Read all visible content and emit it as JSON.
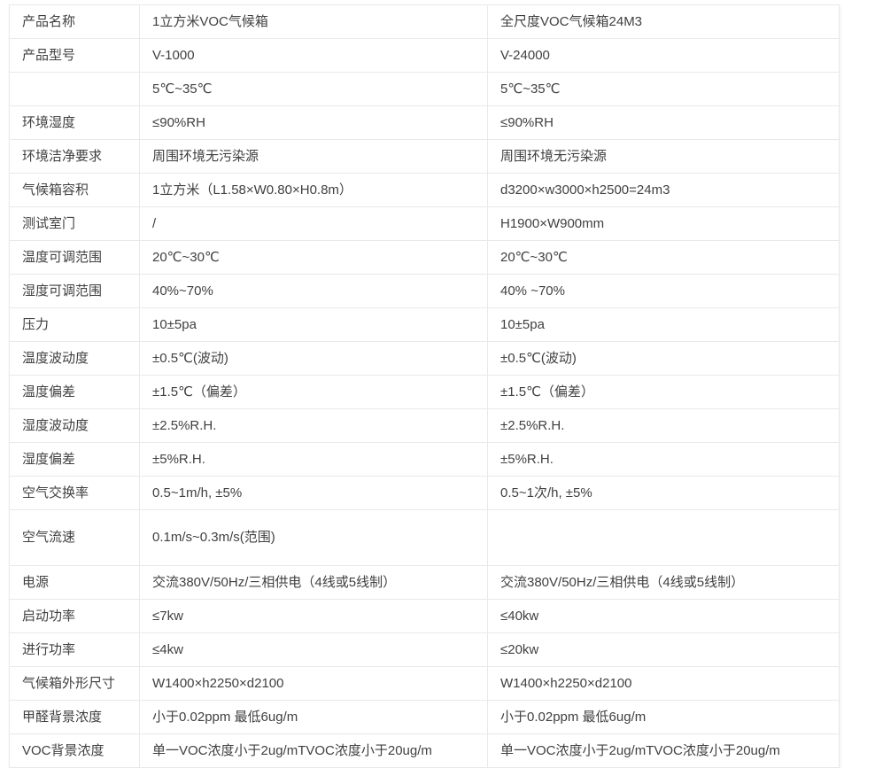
{
  "table": {
    "description": "VOC climate chamber product specification comparison table",
    "columns": [
      "spec-label",
      "product-v1000",
      "product-v24000"
    ],
    "rows": [
      {
        "cells": [
          "产品名称",
          "1立方米VOC气候箱",
          "全尺度VOC气候箱24M3"
        ]
      },
      {
        "cells": [
          "产品型号",
          "V-1000",
          "V-24000"
        ]
      },
      {
        "cells": [
          "",
          "5℃~35℃",
          "5℃~35℃"
        ]
      },
      {
        "cells": [
          "环境湿度",
          "≤90%RH",
          "≤90%RH"
        ]
      },
      {
        "cells": [
          "环境洁净要求",
          "周围环境无污染源",
          "周围环境无污染源"
        ]
      },
      {
        "cells": [
          "气候箱容积",
          "1立方米（L1.58×W0.80×H0.8m）",
          "d3200×w3000×h2500=24m3"
        ]
      },
      {
        "cells": [
          "测试室门",
          "/",
          "H1900×W900mm"
        ]
      },
      {
        "cells": [
          "温度可调范围",
          "20℃~30℃",
          "20℃~30℃"
        ]
      },
      {
        "cells": [
          "湿度可调范围",
          "40%~70%",
          "40% ~70%"
        ]
      },
      {
        "cells": [
          "压力",
          "10±5pa",
          "10±5pa"
        ]
      },
      {
        "cells": [
          "温度波动度",
          "±0.5℃(波动)",
          "±0.5℃(波动)"
        ]
      },
      {
        "cells": [
          "温度偏差",
          "±1.5℃（偏差）",
          "±1.5℃（偏差）"
        ]
      },
      {
        "cells": [
          "湿度波动度",
          "±2.5%R.H.",
          "±2.5%R.H."
        ]
      },
      {
        "cells": [
          "湿度偏差",
          "±5%R.H.",
          "±5%R.H."
        ]
      },
      {
        "cells": [
          "空气交换率",
          "0.5~1m/h, ±5%",
          "0.5~1次/h, ±5%"
        ]
      },
      {
        "cells": [
          "空气流速",
          "0.1m/s~0.3m/s(范围)",
          ""
        ],
        "tall": true
      },
      {
        "cells": [
          "电源",
          "交流380V/50Hz/三相供电（4线或5线制）",
          "交流380V/50Hz/三相供电（4线或5线制）"
        ]
      },
      {
        "cells": [
          "启动功率",
          "≤7kw",
          "≤40kw"
        ]
      },
      {
        "cells": [
          "进行功率",
          "≤4kw",
          "≤20kw"
        ]
      },
      {
        "cells": [
          "气候箱外形尺寸",
          "W1400×h2250×d2100",
          "W1400×h2250×d2100"
        ]
      },
      {
        "cells": [
          "甲醛背景浓度",
          "小于0.02ppm 最低6ug/m",
          "小于0.02ppm 最低6ug/m"
        ]
      },
      {
        "cells": [
          "VOC背景浓度",
          "单一VOC浓度小于2ug/mTVOC浓度小于20ug/m",
          "单一VOC浓度小于2ug/mTVOC浓度小于20ug/m"
        ]
      }
    ]
  },
  "colors": {
    "background": "#ffffff",
    "text": "#404040",
    "border_inner": "#e9e9e9",
    "border_outer": "#d7d7d7"
  }
}
